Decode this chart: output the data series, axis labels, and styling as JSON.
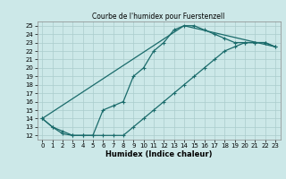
{
  "title": "Courbe de l'humidex pour Fuerstenzell",
  "xlabel": "Humidex (Indice chaleur)",
  "bg_color": "#cce8e8",
  "grid_color": "#aacccc",
  "line_color": "#1a6b6b",
  "xlim": [
    -0.5,
    23.5
  ],
  "ylim": [
    11.5,
    25.5
  ],
  "xticks": [
    0,
    1,
    2,
    3,
    4,
    5,
    6,
    7,
    8,
    9,
    10,
    11,
    12,
    13,
    14,
    15,
    16,
    17,
    18,
    19,
    20,
    21,
    22,
    23
  ],
  "yticks": [
    12,
    13,
    14,
    15,
    16,
    17,
    18,
    19,
    20,
    21,
    22,
    23,
    24,
    25
  ],
  "line1_x": [
    0,
    1,
    2,
    3,
    4,
    5,
    6,
    7,
    8,
    9,
    10,
    11,
    12,
    13,
    14,
    15,
    16,
    17,
    18,
    19,
    20,
    21,
    22,
    23
  ],
  "line1_y": [
    14,
    13,
    12.5,
    12,
    12,
    12,
    15,
    15.5,
    16,
    19,
    20,
    22,
    23,
    24.5,
    25,
    25,
    24.5,
    24,
    23.5,
    23,
    23,
    23,
    23,
    22.5
  ],
  "line2_x": [
    0,
    1,
    2,
    3,
    4,
    5,
    6,
    7,
    8,
    9,
    10,
    11,
    12,
    13,
    14,
    15,
    16,
    17,
    18,
    19,
    20,
    21,
    22,
    23
  ],
  "line2_y": [
    14,
    13,
    12.2,
    12,
    12,
    12,
    12,
    12,
    12,
    13,
    14,
    15,
    16,
    17,
    18,
    19,
    20,
    21,
    22,
    22.5,
    23,
    23,
    23,
    22.5
  ],
  "line3_x": [
    0,
    14,
    23
  ],
  "line3_y": [
    14,
    25,
    22.5
  ],
  "marker": "+",
  "markersize": 3,
  "linewidth": 0.9,
  "tick_fontsize": 5,
  "xlabel_fontsize": 6,
  "title_fontsize": 5.5
}
